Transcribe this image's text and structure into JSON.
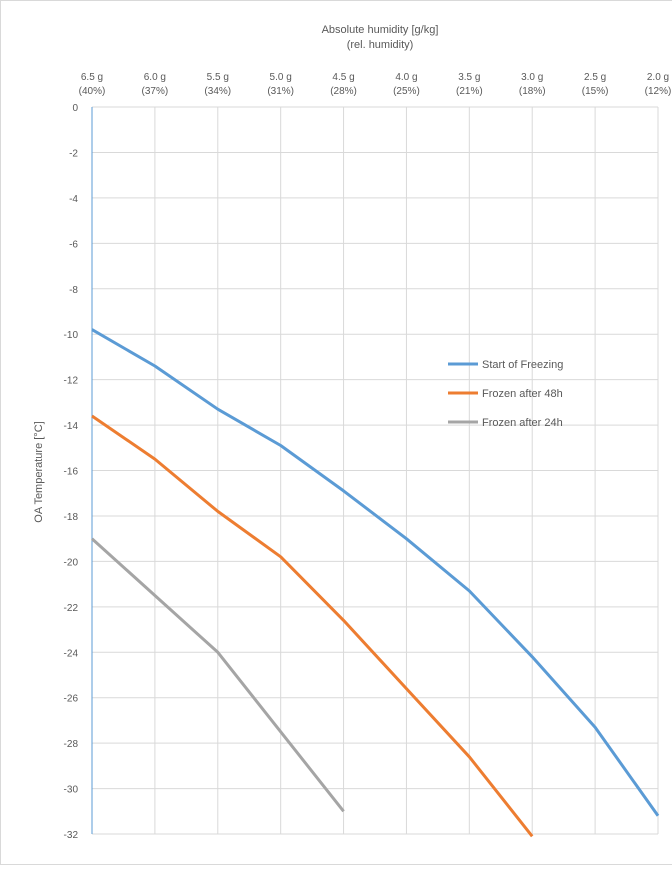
{
  "chart_data": {
    "type": "line",
    "title": "",
    "xlabel_line1": "Absolute humidity [g/kg]",
    "xlabel_line2": "(rel. humidity)",
    "ylabel": "OA Temperature [°C]",
    "x_ticks": [
      {
        "abs": "6.5 g",
        "rel": "(40%)"
      },
      {
        "abs": "6.0 g",
        "rel": "(37%)"
      },
      {
        "abs": "5.5 g",
        "rel": "(34%)"
      },
      {
        "abs": "5.0 g",
        "rel": "(31%)"
      },
      {
        "abs": "4.5 g",
        "rel": "(28%)"
      },
      {
        "abs": "4.0 g",
        "rel": "(25%)"
      },
      {
        "abs": "3.5 g",
        "rel": "(21%)"
      },
      {
        "abs": "3.0 g",
        "rel": "(18%)"
      },
      {
        "abs": "2.5 g",
        "rel": "(15%)"
      },
      {
        "abs": "2.0 g",
        "rel": "(12%)"
      }
    ],
    "x_axis_position": "top",
    "y_ticks": [
      "0",
      "-2",
      "-4",
      "-6",
      "-8",
      "-10",
      "-12",
      "-14",
      "-16",
      "-18",
      "-20",
      "-22",
      "-24",
      "-26",
      "-28",
      "-30",
      "-32"
    ],
    "ylim": [
      -32,
      0
    ],
    "grid": true,
    "legend_position": "right",
    "series": [
      {
        "name": "Start of Freezing",
        "color": "#5b9bd5",
        "values": [
          -9.8,
          -11.4,
          -13.3,
          -14.9,
          -16.9,
          -19.0,
          -21.3,
          -24.2,
          -27.3,
          -31.2
        ]
      },
      {
        "name": "Frozen after 48h",
        "color": "#ed7d31",
        "values": [
          -13.6,
          -15.5,
          -17.8,
          -19.8,
          -22.6,
          -25.6,
          -28.6,
          -32.1
        ]
      },
      {
        "name": "Frozen after 24h",
        "color": "#a5a5a5",
        "values": [
          -19.0,
          -21.5,
          -24.0,
          -27.5,
          -31.0
        ]
      }
    ]
  },
  "colors": {
    "frame_border": "#d9d9d9",
    "gridline": "#d9d9d9",
    "axis_line": "#5b9bd5",
    "text": "#595959"
  }
}
